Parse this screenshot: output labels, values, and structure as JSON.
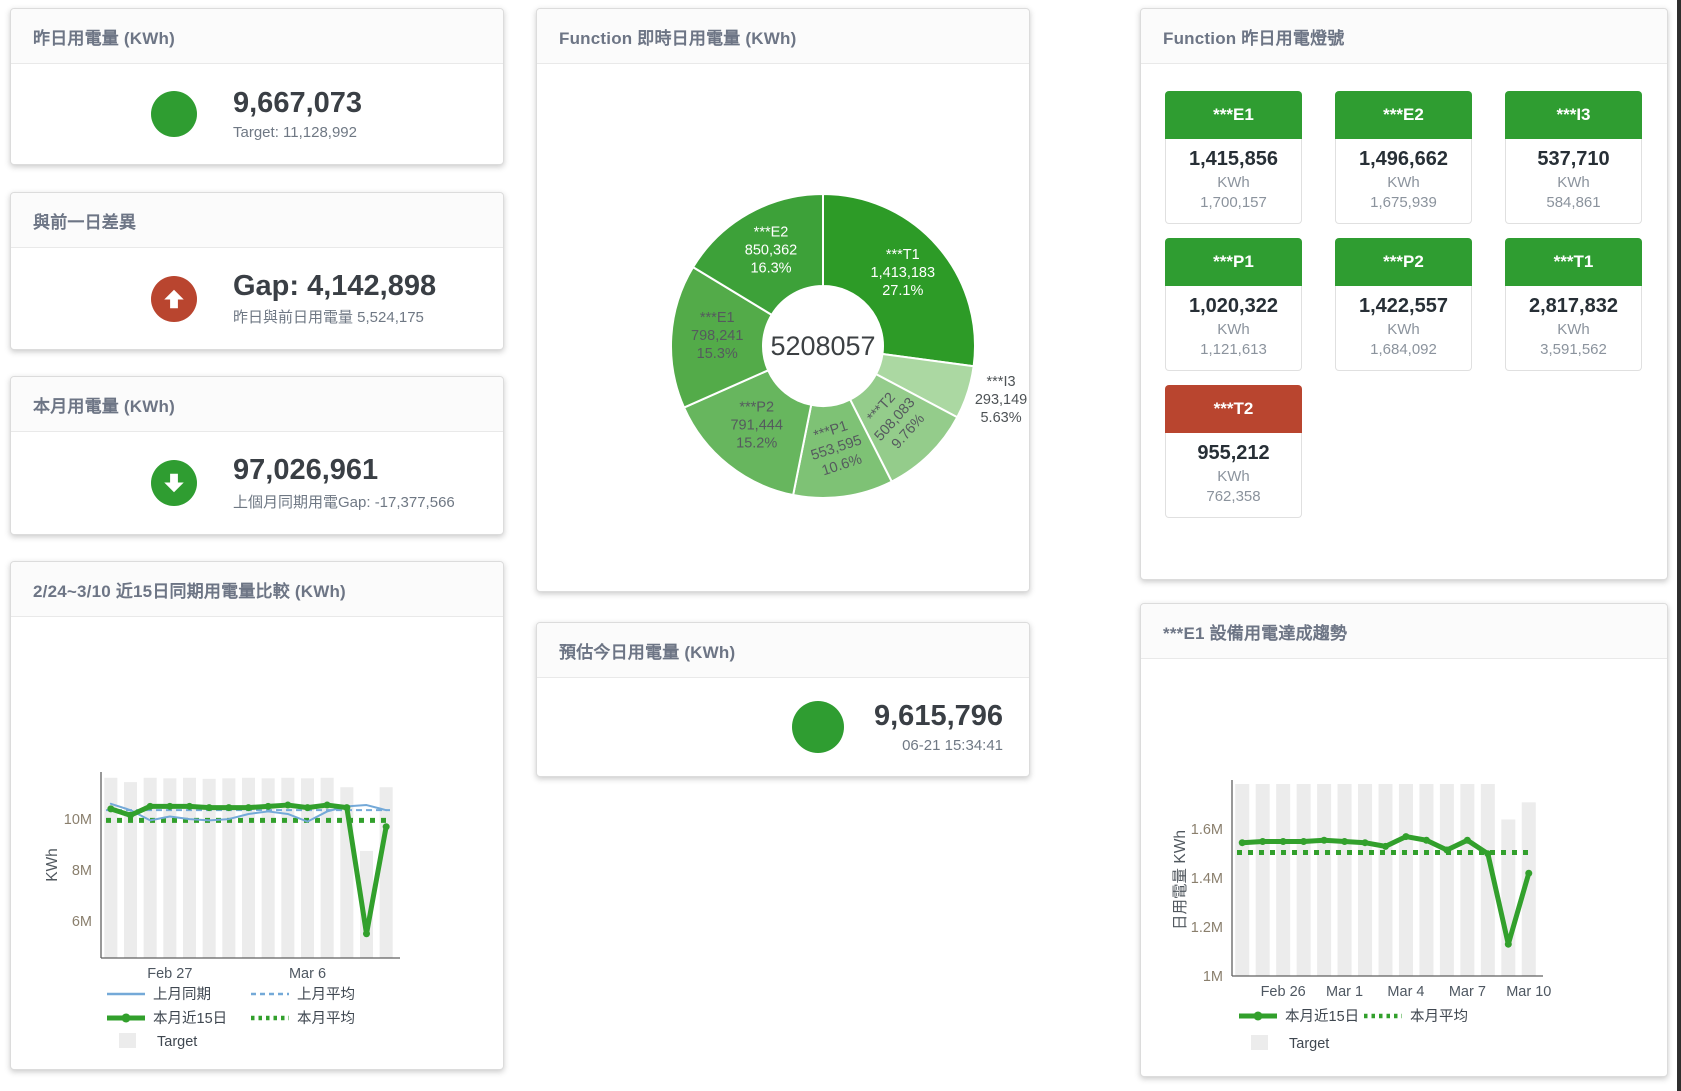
{
  "colors": {
    "green": "#2f9d31",
    "red": "#b9452f",
    "blue_line": "#74a9d8",
    "green_line": "#32a02c",
    "target_bar": "#ececec"
  },
  "cards": {
    "yesterday": {
      "title": "昨日用電量 (KWh)",
      "value": "9,667,073",
      "subtitle": "Target: 11,128,992"
    },
    "gap": {
      "title": "與前一日差異",
      "value": "Gap: 4,142,898",
      "subtitle": "昨日與前日用電量 5,524,175"
    },
    "month": {
      "title": "本月用電量 (KWh)",
      "value": "97,026,961",
      "subtitle": "上個月同期用電Gap: -17,377,566"
    },
    "realtime": {
      "title": "Function 即時日用電量 (KWh)"
    },
    "estimate": {
      "title": "預估今日用電量 (KWh)",
      "value": "9,615,796",
      "subtitle": "06-21 15:34:41"
    },
    "lamp": {
      "title": "Function 昨日用電燈號",
      "unit": "KWh",
      "tiles": [
        {
          "name": "***E1",
          "value": "1,415,856",
          "target": "1,700,157",
          "status": "green"
        },
        {
          "name": "***E2",
          "value": "1,496,662",
          "target": "1,675,939",
          "status": "green"
        },
        {
          "name": "***I3",
          "value": "537,710",
          "target": "584,861",
          "status": "green"
        },
        {
          "name": "***P1",
          "value": "1,020,322",
          "target": "1,121,613",
          "status": "green"
        },
        {
          "name": "***P2",
          "value": "1,422,557",
          "target": "1,684,092",
          "status": "green"
        },
        {
          "name": "***T1",
          "value": "2,817,832",
          "target": "3,591,562",
          "status": "green"
        },
        {
          "name": "***T2",
          "value": "955,212",
          "target": "762,358",
          "status": "red"
        }
      ]
    },
    "compare": {
      "title": "2/24~3/10 近15日同期用電量比較 (KWh)"
    },
    "trend": {
      "title": "***E1 設備用電達成趨勢"
    }
  },
  "chart_data": [
    {
      "id": "realtime-donut",
      "type": "pie",
      "title": "Function 即時日用電量 (KWh)",
      "center_total": "5208057",
      "slices": [
        {
          "name": "***T1",
          "value": 1413183,
          "value_label": "1,413,183",
          "pct": 27.1,
          "pct_label": "27.1%",
          "color": "#2d9b27",
          "text": "#ffffff",
          "label_pos": "inside"
        },
        {
          "name": "***I3",
          "value": 293149,
          "value_label": "293,149",
          "pct": 5.63,
          "pct_label": "5.63%",
          "color": "#abd8a2",
          "text": "#4e5356",
          "label_pos": "outside"
        },
        {
          "name": "***T2",
          "value": 508083,
          "value_label": "508,083",
          "pct": 9.76,
          "pct_label": "9.76%",
          "color": "#94cc8b",
          "text": "#555a5e",
          "label_pos": "inside",
          "rotate": -48
        },
        {
          "name": "***P1",
          "value": 553595,
          "value_label": "553,595",
          "pct": 10.6,
          "pct_label": "10.6%",
          "color": "#7ec275",
          "text": "#555a5e",
          "label_pos": "inside",
          "rotate": -18
        },
        {
          "name": "***P2",
          "value": 791444,
          "value_label": "791,444",
          "pct": 15.2,
          "pct_label": "15.2%",
          "color": "#67b65e",
          "text": "#555a5e",
          "label_pos": "inside"
        },
        {
          "name": "***E1",
          "value": 798241,
          "value_label": "798,241",
          "pct": 15.3,
          "pct_label": "15.3%",
          "color": "#53ab49",
          "text": "#555a5e",
          "label_pos": "inside"
        },
        {
          "name": "***E2",
          "value": 850362,
          "value_label": "850,362",
          "pct": 16.3,
          "pct_label": "16.3%",
          "color": "#3da139",
          "text": "#ffffff",
          "label_pos": "inside"
        }
      ]
    },
    {
      "id": "compare-chart",
      "type": "line+bar",
      "title": "2/24~3/10 近15日同期用電量比較 (KWh)",
      "ylabel": "KWh",
      "unit": "millions KWh",
      "categories": [
        "2/24",
        "2/25",
        "2/26",
        "2/27",
        "2/28",
        "3/1",
        "3/2",
        "3/3",
        "3/4",
        "3/5",
        "3/6",
        "3/7",
        "3/8",
        "3/9",
        "3/10"
      ],
      "ylim": [
        4.55,
        11.69
      ],
      "yticks": [
        {
          "v": 10,
          "label": "10M"
        },
        {
          "v": 8,
          "label": "8M"
        },
        {
          "v": 6,
          "label": "6M"
        }
      ],
      "xticks": [
        {
          "i": 3,
          "label": "Feb 27"
        },
        {
          "i": 10,
          "label": "Mar 6"
        }
      ],
      "series": [
        {
          "name": "Target",
          "type": "bar",
          "color": "#ececec",
          "values": [
            11.62,
            11.45,
            11.62,
            11.6,
            11.62,
            11.58,
            11.6,
            11.62,
            11.6,
            11.62,
            11.6,
            11.62,
            11.25,
            8.75,
            11.25
          ]
        },
        {
          "name": "上月同期",
          "type": "line",
          "style": "solid",
          "width": 2,
          "color": "#74a9d8",
          "values": [
            10.6,
            10.35,
            9.95,
            10.1,
            10.0,
            9.95,
            10.0,
            10.2,
            10.3,
            10.2,
            9.9,
            10.3,
            10.5,
            10.55,
            10.35
          ]
        },
        {
          "name": "上月平均",
          "type": "ref",
          "style": "dash",
          "width": 2,
          "color": "#74a9d8",
          "value": 10.35
        },
        {
          "name": "本月近15日",
          "type": "line",
          "style": "solid",
          "width": 5,
          "dots": true,
          "color": "#32a02c",
          "values": [
            10.4,
            10.15,
            10.5,
            10.5,
            10.5,
            10.45,
            10.45,
            10.45,
            10.5,
            10.55,
            10.45,
            10.55,
            10.45,
            5.5,
            9.7
          ]
        },
        {
          "name": "本月平均",
          "type": "ref",
          "style": "dot",
          "width": 5,
          "color": "#32a02c",
          "value": 9.95
        }
      ],
      "legend": [
        {
          "style": "line",
          "color": "#74a9d8",
          "label": "上月同期"
        },
        {
          "style": "dash",
          "color": "#74a9d8",
          "label": "上月平均"
        },
        {
          "style": "thick",
          "color": "#32a02c",
          "label": "本月近15日"
        },
        {
          "style": "dot",
          "color": "#32a02c",
          "label": "本月平均"
        },
        {
          "style": "box",
          "color": "#ececec",
          "label": "Target"
        }
      ]
    },
    {
      "id": "trend-chart",
      "type": "line+bar",
      "title": "***E1 設備用電達成趨勢",
      "ylabel": "日用電量 KWh",
      "unit": "millions KWh",
      "categories": [
        "2/24",
        "2/25",
        "2/26",
        "2/27",
        "2/28",
        "3/1",
        "3/2",
        "3/3",
        "3/4",
        "3/5",
        "3/6",
        "3/7",
        "3/8",
        "3/9",
        "3/10"
      ],
      "ylim": [
        1.0,
        1.785
      ],
      "yticks": [
        {
          "v": 1.6,
          "label": "1.6M"
        },
        {
          "v": 1.4,
          "label": "1.4M"
        },
        {
          "v": 1.2,
          "label": "1.2M"
        },
        {
          "v": 1.0,
          "label": "1M"
        }
      ],
      "xticks": [
        {
          "i": 2,
          "label": "Feb 26"
        },
        {
          "i": 5,
          "label": "Mar 1"
        },
        {
          "i": 8,
          "label": "Mar 4"
        },
        {
          "i": 11,
          "label": "Mar 7"
        },
        {
          "i": 14,
          "label": "Mar 10"
        }
      ],
      "series": [
        {
          "name": "Target",
          "type": "bar",
          "color": "#ececec",
          "values": [
            1.785,
            1.785,
            1.785,
            1.785,
            1.785,
            1.785,
            1.785,
            1.785,
            1.785,
            1.785,
            1.785,
            1.785,
            1.785,
            1.64,
            1.71
          ]
        },
        {
          "name": "本月近15日",
          "type": "line",
          "style": "solid",
          "width": 5,
          "dots": true,
          "color": "#32a02c",
          "values": [
            1.545,
            1.55,
            1.55,
            1.55,
            1.555,
            1.55,
            1.545,
            1.53,
            1.57,
            1.555,
            1.515,
            1.555,
            1.5,
            1.13,
            1.42
          ]
        },
        {
          "name": "本月平均",
          "type": "ref",
          "style": "dot",
          "width": 5,
          "color": "#32a02c",
          "value": 1.505
        }
      ],
      "legend": [
        {
          "style": "thick",
          "color": "#32a02c",
          "label": "本月近15日"
        },
        {
          "style": "dot",
          "color": "#32a02c",
          "label": "本月平均"
        },
        {
          "style": "box",
          "color": "#ececec",
          "label": "Target"
        }
      ]
    }
  ]
}
